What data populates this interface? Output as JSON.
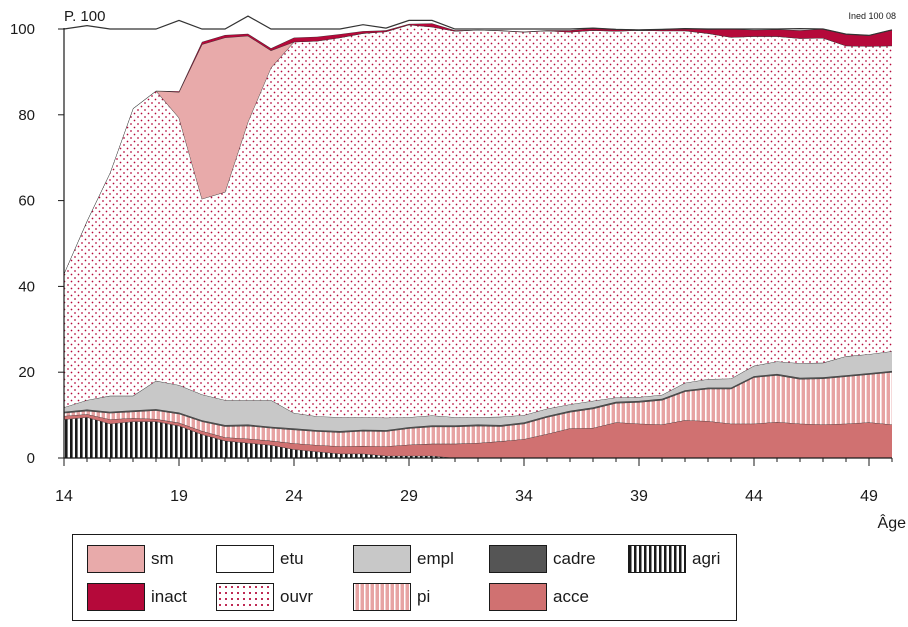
{
  "source_note": "Ined 100 08",
  "chart_data": {
    "type": "area",
    "stacked": true,
    "title": "",
    "ylabel": "P. 100",
    "xlabel": "Âge",
    "xlim": [
      14,
      50
    ],
    "ylim": [
      0,
      100
    ],
    "x_ticks": [
      14,
      19,
      24,
      29,
      34,
      39,
      44,
      49
    ],
    "y_ticks": [
      0,
      20,
      40,
      60,
      80,
      100
    ],
    "grid": false,
    "x": [
      14,
      15,
      16,
      17,
      18,
      19,
      20,
      21,
      22,
      23,
      24,
      25,
      26,
      27,
      28,
      29,
      30,
      31,
      32,
      33,
      34,
      35,
      36,
      37,
      38,
      39,
      40,
      41,
      42,
      43,
      44,
      45,
      46,
      47,
      48,
      49,
      50
    ],
    "series": [
      {
        "name": "agri",
        "color": "#1a1a1a",
        "values": [
          9,
          9.5,
          8,
          8.5,
          8.5,
          7.5,
          5.5,
          4,
          3.5,
          3,
          2,
          1.5,
          1,
          1,
          0.5,
          0.5,
          0.5,
          0,
          0,
          0,
          0,
          0,
          0,
          0,
          0,
          0,
          0,
          0,
          0,
          0,
          0,
          0,
          0,
          0,
          0,
          0,
          0
        ]
      },
      {
        "name": "acce",
        "color": "#d07171",
        "values": [
          0.8,
          0.7,
          1,
          0.8,
          0.6,
          0.7,
          0.8,
          0.8,
          1,
          1,
          1.4,
          1.5,
          1.7,
          1.8,
          2.2,
          2.6,
          2.8,
          3.3,
          3.5,
          3.9,
          4.4,
          5.6,
          6.9,
          7,
          8.3,
          8,
          7.8,
          8.8,
          8.6,
          8,
          8,
          8.4,
          8,
          7.8,
          8,
          8.3,
          7.8
        ]
      },
      {
        "name": "pi",
        "color": "#e7a3a3",
        "values": [
          0.7,
          0.8,
          1.5,
          1.5,
          2,
          2.1,
          2.2,
          2.6,
          3,
          3,
          3.2,
          3.2,
          3.3,
          3.5,
          3.5,
          3.8,
          4,
          4,
          4,
          3.5,
          3.6,
          3.9,
          3.8,
          4.5,
          4.5,
          5,
          5.7,
          6.7,
          7.5,
          8.1,
          10.8,
          10.9,
          10.4,
          10.7,
          11,
          11.2,
          12.2
        ]
      },
      {
        "name": "cadre",
        "color": "#555555",
        "values": [
          0.3,
          0.3,
          0.3,
          0.3,
          0.3,
          0.3,
          0.3,
          0.3,
          0.3,
          0.3,
          0.3,
          0.3,
          0.3,
          0.3,
          0.3,
          0.3,
          0.3,
          0.3,
          0.3,
          0.3,
          0.3,
          0.3,
          0.3,
          0.3,
          0.3,
          0.3,
          0.3,
          0.3,
          0.3,
          0.3,
          0.3,
          0.3,
          0.3,
          0.3,
          0.3,
          0.3,
          0.3
        ]
      },
      {
        "name": "empl",
        "color": "#c8c8c8",
        "values": [
          1,
          2.2,
          3.7,
          3.4,
          6.6,
          6.4,
          6,
          5.8,
          5.7,
          6.2,
          3.6,
          3.2,
          3.2,
          2.9,
          2.9,
          2.3,
          2.3,
          1.9,
          1.7,
          1.9,
          1.7,
          1.7,
          1.5,
          1.5,
          1,
          0.9,
          0.9,
          1.7,
          2,
          2.1,
          2.4,
          2.9,
          3.4,
          3.4,
          4.4,
          4.4,
          4.6
        ]
      },
      {
        "name": "ouvr",
        "color": "#ffffff",
        "values": [
          31.2,
          41.8,
          52,
          67,
          67.6,
          62.3,
          45.6,
          48.5,
          64.9,
          77.5,
          86.5,
          87.5,
          88.5,
          89.5,
          90,
          91.5,
          90.6,
          90,
          90.3,
          90,
          89.3,
          88.1,
          86.8,
          86.4,
          85.4,
          85.5,
          84.9,
          82.1,
          80.6,
          79.6,
          76.8,
          75.8,
          75.7,
          75.7,
          72.4,
          71.8,
          71.2
        ]
      },
      {
        "name": "sm",
        "color": "#e8aaaa",
        "values": [
          0,
          0,
          0,
          0,
          0,
          6,
          36,
          36,
          20,
          4,
          0,
          0,
          0,
          0,
          0,
          0,
          0,
          0,
          0,
          0,
          0,
          0,
          0,
          0,
          0,
          0,
          0,
          0,
          0,
          0,
          0,
          0,
          0,
          0,
          0,
          0,
          0
        ]
      },
      {
        "name": "inact",
        "color": "#b5093a",
        "values": [
          0,
          0,
          0,
          0,
          0,
          0.2,
          0.6,
          0.6,
          0.5,
          0.5,
          1,
          1,
          0.8,
          0.5,
          0.3,
          0.2,
          0.8,
          0.2,
          0,
          0.1,
          0.1,
          0.1,
          0.4,
          0.5,
          0.4,
          0.1,
          0.3,
          0.5,
          0.9,
          1.9,
          1.5,
          1.6,
          1.9,
          2.1,
          2.7,
          2.5,
          3.7
        ]
      },
      {
        "name": "etu",
        "color": "#ffffff",
        "values": [
          57,
          45.5,
          33.5,
          18.5,
          14.4,
          16.5,
          3,
          1.4,
          4.1,
          4.5,
          2,
          1.8,
          1.2,
          1.5,
          0.5,
          0.8,
          0.7,
          0.3,
          0.2,
          0.3,
          0.6,
          0.3,
          0.3,
          0,
          0,
          0,
          0,
          0,
          0.1,
          0,
          0.2,
          0.1,
          0.4,
          0,
          0,
          0,
          0
        ]
      }
    ],
    "legend": {
      "placement": "bottom",
      "items": [
        {
          "name": "sm",
          "fill": "#e8aaaa",
          "pattern": "solid"
        },
        {
          "name": "etu",
          "fill": "#ffffff",
          "pattern": "solid"
        },
        {
          "name": "empl",
          "fill": "#c8c8c8",
          "pattern": "solid"
        },
        {
          "name": "cadre",
          "fill": "#555555",
          "pattern": "solid"
        },
        {
          "name": "agri",
          "fill": "#ffffff",
          "pattern": "vertical-stripes"
        },
        {
          "name": "inact",
          "fill": "#b5093a",
          "pattern": "solid"
        },
        {
          "name": "ouvr",
          "fill": "#ffffff",
          "pattern": "dots"
        },
        {
          "name": "pi",
          "fill": "#e7a3a3",
          "pattern": "light-vertical-stripes"
        },
        {
          "name": "acce",
          "fill": "#d07171",
          "pattern": "solid"
        }
      ]
    }
  }
}
